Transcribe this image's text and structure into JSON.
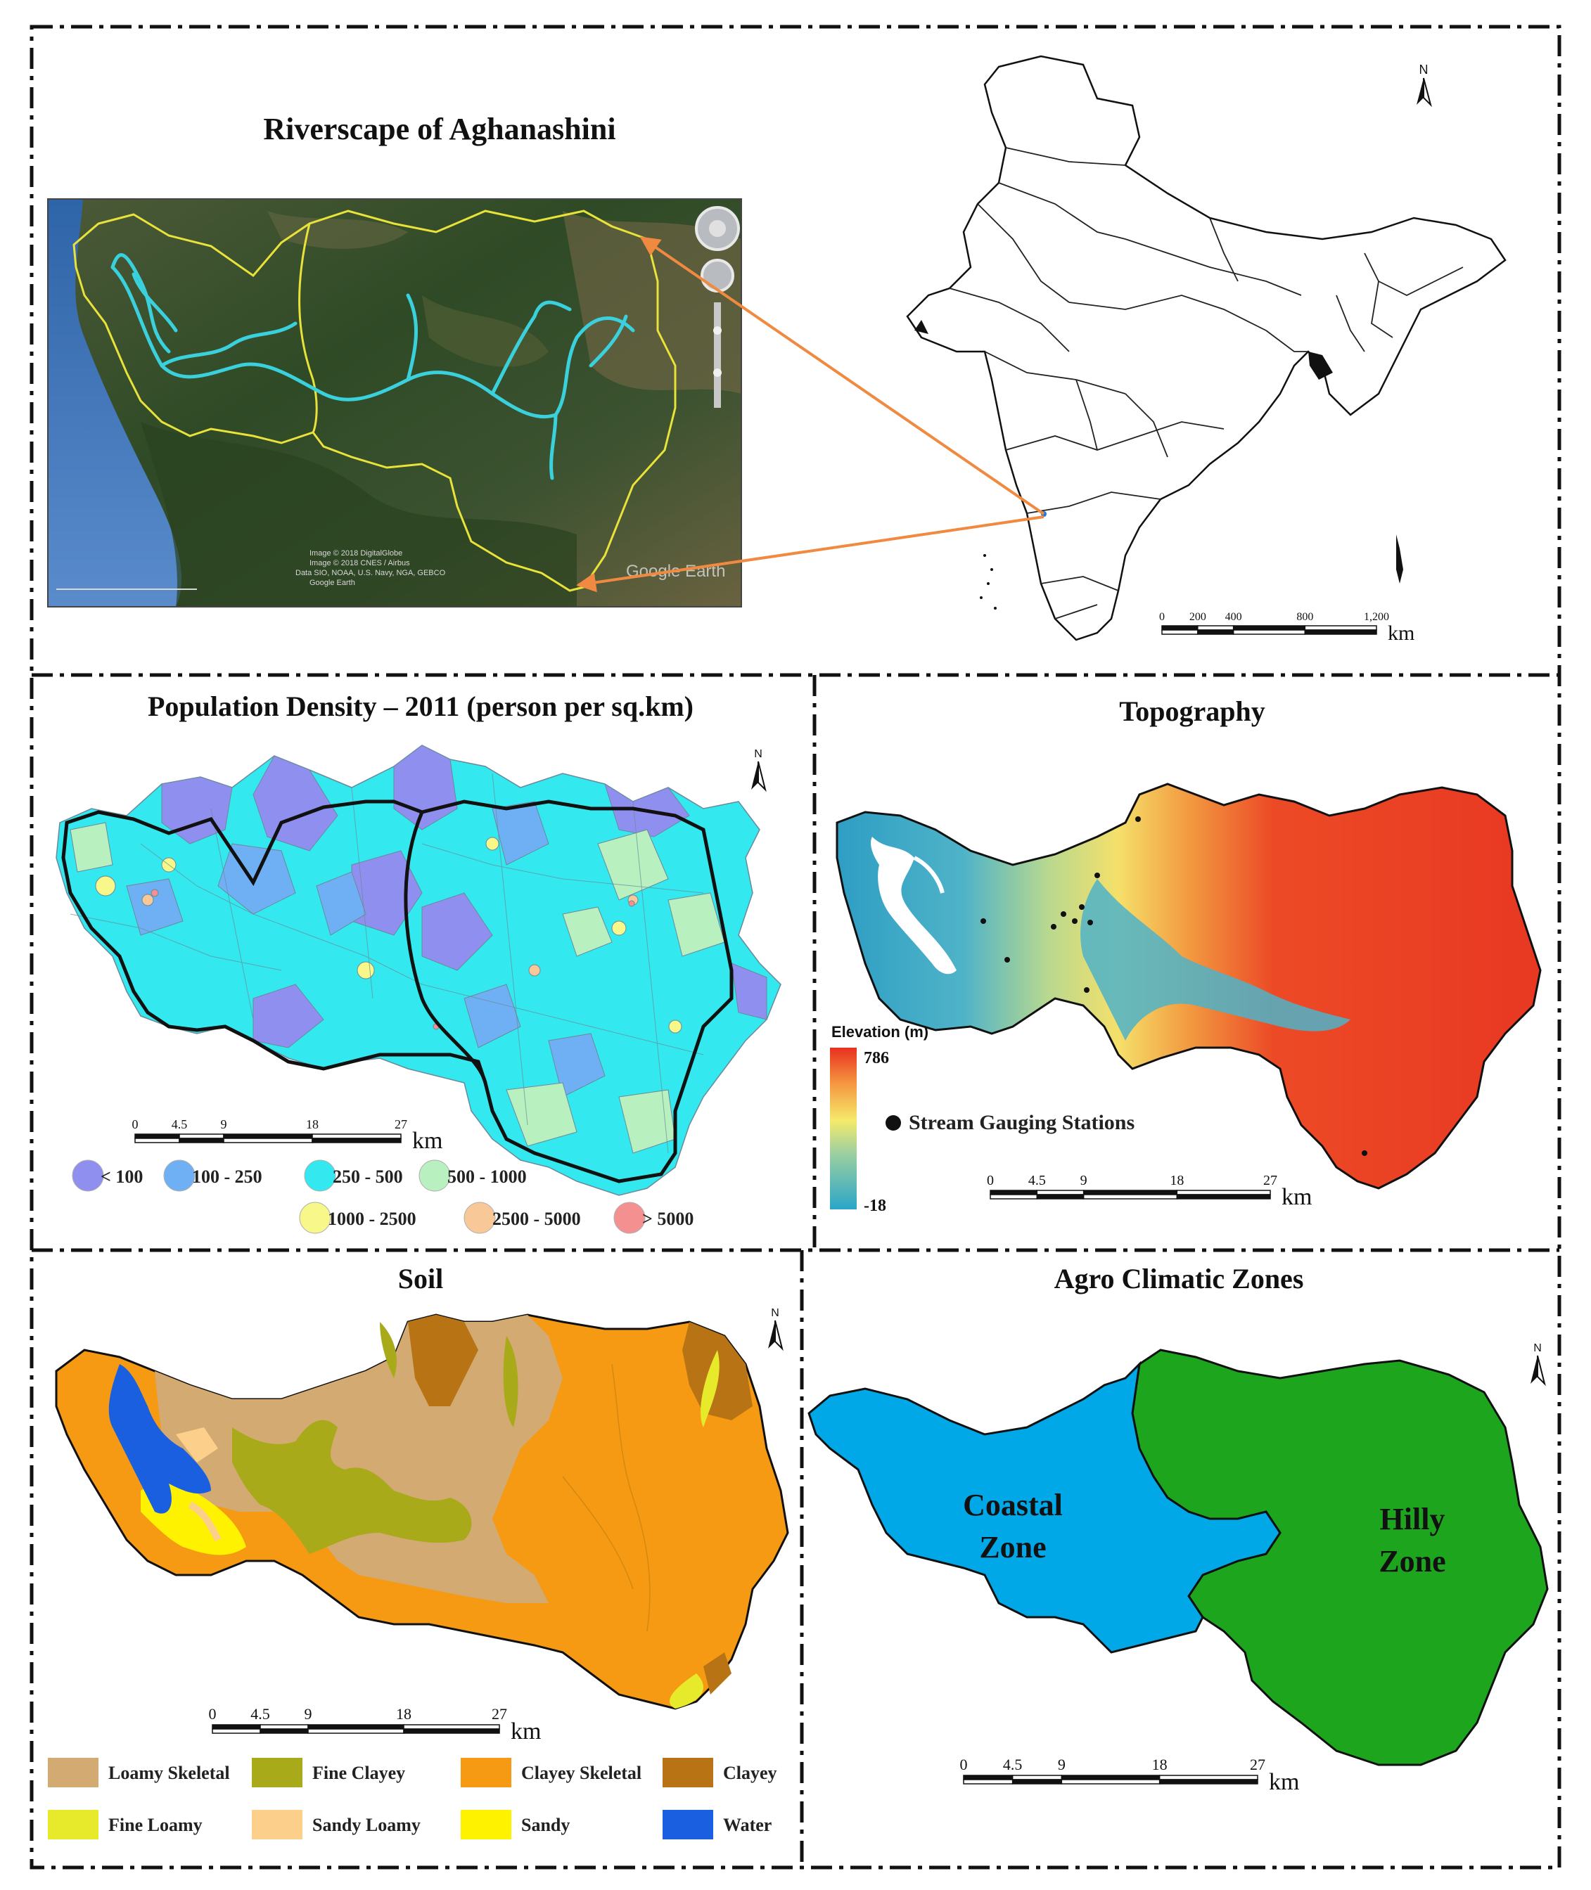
{
  "panels": {
    "riverscape": {
      "title": "Riverscape of Aghanashini",
      "imagery_credits": [
        "Image © 2018 DigitalGlobe",
        "Image © 2018 CNES / Airbus",
        "Data SIO, NOAA, U.S. Navy, NGA, GEBCO",
        "Google Earth"
      ],
      "watermark": "Google Earth"
    },
    "india": {
      "north": "N",
      "scale": {
        "ticks": [
          "0",
          "200",
          "400",
          "800",
          "1,200"
        ],
        "unit": "km"
      }
    },
    "population": {
      "title": "Population Density – 2011 (person per sq.km)",
      "north": "N",
      "scale": {
        "ticks": [
          "0",
          "4.5",
          "9",
          "18",
          "27"
        ],
        "unit": "km"
      },
      "legend": [
        {
          "label": "< 100",
          "color": "#8f8ff0"
        },
        {
          "label": "100 - 250",
          "color": "#6fb0f5"
        },
        {
          "label": "250 - 500",
          "color": "#33e8ee"
        },
        {
          "label": "500 - 1000",
          "color": "#b8f0c0"
        },
        {
          "label": "1000 - 2500",
          "color": "#f8f88a"
        },
        {
          "label": "2500 - 5000",
          "color": "#f8c898"
        },
        {
          "label": "> 5000",
          "color": "#f59090"
        }
      ]
    },
    "topography": {
      "title": "Topography",
      "legend_title": "Elevation (m)",
      "max": "786",
      "min": "-18",
      "stations_label": "Stream Gauging Stations",
      "scale": {
        "ticks": [
          "0",
          "4.5",
          "9",
          "18",
          "27"
        ],
        "unit": "km"
      }
    },
    "soil": {
      "title": "Soil",
      "north": "N",
      "scale": {
        "ticks": [
          "0",
          "4.5",
          "9",
          "18",
          "27"
        ],
        "unit": "km"
      },
      "legend": [
        {
          "label": "Loamy Skeletal",
          "color": "#d2aa72"
        },
        {
          "label": "Fine Clayey",
          "color": "#a8aa1a"
        },
        {
          "label": "Clayey Skeletal",
          "color": "#f59a12"
        },
        {
          "label": "Clayey",
          "color": "#b87414"
        },
        {
          "label": "Fine Loamy",
          "color": "#e6ea2a"
        },
        {
          "label": "Sandy Loamy",
          "color": "#fcd08a"
        },
        {
          "label": "Sandy",
          "color": "#fff200"
        },
        {
          "label": "Water",
          "color": "#1a5fe0"
        }
      ]
    },
    "agro": {
      "title": "Agro Climatic Zones",
      "north": "N",
      "coastal": [
        "Coastal",
        "Zone"
      ],
      "hilly": [
        "Hilly",
        "Zone"
      ],
      "coastal_color": "#00a8e8",
      "hilly_color": "#1ea51e",
      "scale": {
        "ticks": [
          "0",
          "4.5",
          "9",
          "18",
          "27"
        ],
        "unit": "km"
      }
    }
  }
}
